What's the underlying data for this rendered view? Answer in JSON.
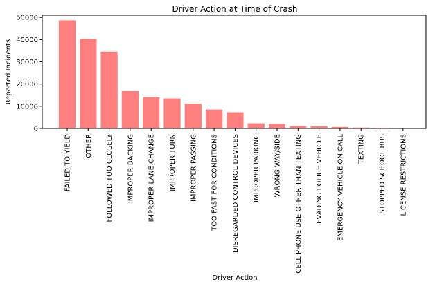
{
  "chart_data": {
    "type": "bar",
    "title": "Driver Action at Time of Crash",
    "xlabel": "Driver Action",
    "ylabel": "Reported Incidents",
    "ylim": [
      0,
      51000
    ],
    "yticks": [
      0,
      10000,
      20000,
      30000,
      40000,
      50000
    ],
    "bar_color": "#ff7f7f",
    "grid": false,
    "legend": "none",
    "categories": [
      "FAILED TO YIELD",
      "OTHER",
      "FOLLOWED TOO CLOSELY",
      "IMPROPER BACKING",
      "IMPROPER LANE CHANGE",
      "IMPROPER TURN",
      "IMPROPER PASSING",
      "TOO FAST FOR CONDITIONS",
      "DISREGARDED CONTROL DEVICES",
      "IMPROPER PARKING",
      "WRONG WAY/SIDE",
      "CELL PHONE USE OTHER THAN TEXTING",
      "EVADING POLICE VEHICLE",
      "EMERGENCY VEHICLE ON CALL",
      "TEXTING",
      "STOPPED SCHOOL BUS",
      "LICENSE RESTRICTIONS"
    ],
    "values": [
      48700,
      40300,
      34600,
      16800,
      14100,
      13500,
      11200,
      8500,
      7300,
      2300,
      2000,
      1100,
      1000,
      700,
      400,
      300,
      100
    ]
  }
}
